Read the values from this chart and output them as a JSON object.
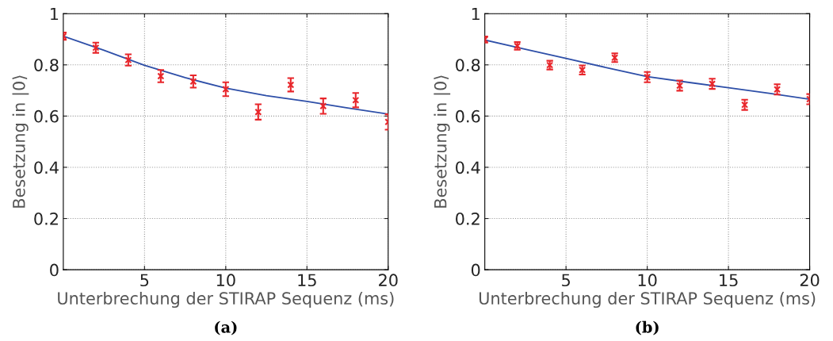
{
  "chart_data": [
    {
      "type": "scatter",
      "xlabel": "Unterbrechung der STIRAP Sequenz (ms)",
      "ylabel": "Besetzung in |0⟩",
      "annotations": [
        "(a)"
      ],
      "xlim": [
        0,
        20
      ],
      "xticks": [
        5,
        10,
        15,
        20
      ],
      "ylim": [
        0,
        1
      ],
      "yticks": [
        0,
        0.2,
        0.4,
        0.6,
        0.8,
        1
      ],
      "grid": true,
      "series": [
        {
          "color": "#e8262b",
          "marker": "cross",
          "x": [
            0,
            2,
            4,
            6,
            8,
            10,
            12,
            14,
            16,
            18,
            20
          ],
          "values": [
            0.912,
            0.867,
            0.819,
            0.756,
            0.735,
            0.705,
            0.616,
            0.722,
            0.639,
            0.662,
            0.577
          ],
          "errors": [
            0.014,
            0.02,
            0.022,
            0.024,
            0.024,
            0.027,
            0.03,
            0.026,
            0.03,
            0.028,
            0.03
          ]
        },
        {
          "type": "line",
          "color": "#2e4fa8",
          "marker": "none",
          "line_style": "solid",
          "x": [
            0,
            2.5,
            5,
            7.5,
            10,
            12.5,
            15,
            17.5,
            20
          ],
          "values": [
            0.912,
            0.857,
            0.798,
            0.75,
            0.709,
            0.68,
            0.657,
            0.632,
            0.608
          ]
        }
      ]
    },
    {
      "type": "scatter",
      "xlabel": "Unterbrechung der STIRAP Sequenz (ms)",
      "ylabel": "Besetzung in |0⟩",
      "annotations": [
        "(b)"
      ],
      "xlim": [
        0,
        20
      ],
      "xticks": [
        5,
        10,
        15,
        20
      ],
      "ylim": [
        0,
        1
      ],
      "yticks": [
        0,
        0.2,
        0.4,
        0.6,
        0.8,
        1
      ],
      "grid": true,
      "series": [
        {
          "color": "#e8262b",
          "marker": "cross",
          "x": [
            0,
            2,
            4,
            6,
            8,
            10,
            12,
            14,
            16,
            18,
            20
          ],
          "values": [
            0.899,
            0.874,
            0.799,
            0.78,
            0.828,
            0.752,
            0.719,
            0.726,
            0.644,
            0.704,
            0.666
          ],
          "errors": [
            0.012,
            0.015,
            0.017,
            0.018,
            0.017,
            0.02,
            0.02,
            0.02,
            0.02,
            0.02,
            0.02
          ]
        },
        {
          "type": "line",
          "color": "#2e4fa8",
          "marker": "none",
          "line_style": "solid",
          "x": [
            0,
            2.5,
            5,
            7.5,
            10,
            12.5,
            15,
            17.5,
            20
          ],
          "values": [
            0.897,
            0.861,
            0.825,
            0.789,
            0.754,
            0.732,
            0.711,
            0.689,
            0.666
          ]
        }
      ]
    }
  ]
}
